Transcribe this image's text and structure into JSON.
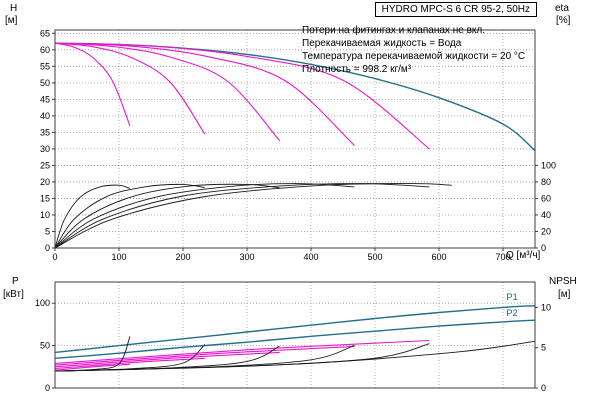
{
  "panel": {
    "title": "HYDRO MPC-S 6 CR 95-2, 50Hz",
    "notes": [
      "Потери на фитингах и клапанах не вкл.",
      "Перекачиваемая жидкость = Вода",
      "Температура перекачиваемой жидкости = 20 °C",
      "Плотность = 998.2 кг/м³"
    ]
  },
  "axes_labels": {
    "head": "H",
    "head_unit": "[м]",
    "eta": "eta",
    "eta_unit": "[%]",
    "power": "P",
    "power_unit": "[кВт]",
    "npsh": "NPSH",
    "npsh_unit": "[м]",
    "flow": "Q [м³/ч]"
  },
  "colors": {
    "blue": "#236d8e",
    "magenta": "#e619cb",
    "black": "#1a1a1a",
    "grid": "#9b9b9b",
    "frame": "#3c3c3c"
  },
  "chart_data": [
    {
      "type": "line",
      "name": "head-efficiency-chart",
      "title": "HYDRO MPC-S 6 CR 95-2, 50Hz",
      "xlabel": "Q [м³/ч]",
      "ylabel": "H [м]",
      "y2label": "eta [%]",
      "xlim": [
        0,
        750
      ],
      "ylim": [
        0,
        66
      ],
      "y2lim": [
        0,
        100
      ],
      "y2_maps_to_y": [
        0,
        25
      ],
      "xticks": [
        0,
        100,
        200,
        300,
        400,
        500,
        600,
        700
      ],
      "yticks": [
        0,
        5,
        10,
        15,
        20,
        25,
        30,
        35,
        40,
        45,
        50,
        55,
        60,
        65
      ],
      "y2ticks": [
        0,
        20,
        40,
        60,
        80,
        100
      ],
      "series": [
        {
          "name": "head-6-pumps",
          "color_key": "blue",
          "axis": "y",
          "width": 1.4,
          "x": [
            0,
            100,
            200,
            300,
            400,
            500,
            600,
            700,
            750
          ],
          "y": [
            62,
            61.6,
            60.5,
            58.6,
            55.6,
            51.3,
            45.5,
            37.5,
            29.5
          ]
        },
        {
          "name": "head-1-pump",
          "color_key": "magenta",
          "axis": "y",
          "width": 1.1,
          "x": [
            0,
            30,
            60,
            90,
            117
          ],
          "y": [
            62,
            60.8,
            57.5,
            50.5,
            37
          ]
        },
        {
          "name": "head-2-pumps",
          "color_key": "magenta",
          "axis": "y",
          "width": 1.1,
          "x": [
            0,
            60,
            120,
            180,
            234
          ],
          "y": [
            62,
            60.9,
            57.6,
            50.2,
            34.5
          ]
        },
        {
          "name": "head-3-pumps",
          "color_key": "magenta",
          "axis": "y",
          "width": 1.1,
          "x": [
            0,
            90,
            180,
            270,
            351
          ],
          "y": [
            62,
            61,
            57.8,
            50.4,
            32.5
          ]
        },
        {
          "name": "head-4-pumps",
          "color_key": "magenta",
          "axis": "y",
          "width": 1.1,
          "x": [
            0,
            120,
            240,
            360,
            468
          ],
          "y": [
            62,
            61.1,
            57.9,
            50.6,
            31
          ]
        },
        {
          "name": "head-5-pumps",
          "color_key": "magenta",
          "axis": "y",
          "width": 1.1,
          "x": [
            0,
            150,
            300,
            450,
            585
          ],
          "y": [
            62,
            61.2,
            58,
            50.8,
            30
          ]
        },
        {
          "name": "efficiency-1-pump",
          "color_key": "black",
          "axis": "y2",
          "width": 0.9,
          "x": [
            0,
            15,
            40,
            70,
            100,
            117
          ],
          "y": [
            0,
            35,
            62,
            74,
            76,
            72
          ]
        },
        {
          "name": "efficiency-2-pumps",
          "color_key": "black",
          "axis": "y2",
          "width": 0.9,
          "x": [
            0,
            30,
            80,
            140,
            200,
            234
          ],
          "y": [
            0,
            35,
            62,
            74,
            77,
            73
          ]
        },
        {
          "name": "efficiency-3-pumps",
          "color_key": "black",
          "axis": "y2",
          "width": 0.9,
          "x": [
            0,
            45,
            120,
            210,
            300,
            351
          ],
          "y": [
            0,
            35,
            62,
            75,
            77,
            73
          ]
        },
        {
          "name": "efficiency-4-pumps",
          "color_key": "black",
          "axis": "y2",
          "width": 0.9,
          "x": [
            0,
            60,
            160,
            280,
            380,
            468
          ],
          "y": [
            0,
            35,
            62,
            75,
            78,
            74
          ]
        },
        {
          "name": "efficiency-5-pumps",
          "color_key": "black",
          "axis": "y2",
          "width": 0.9,
          "x": [
            0,
            75,
            200,
            350,
            480,
            585
          ],
          "y": [
            0,
            35,
            63,
            75,
            78,
            74
          ]
        },
        {
          "name": "efficiency-6-pumps",
          "color_key": "black",
          "axis": "y2",
          "width": 0.9,
          "x": [
            0,
            90,
            240,
            420,
            560,
            620
          ],
          "y": [
            0,
            35,
            63,
            76,
            78,
            76
          ]
        }
      ],
      "annotations": []
    },
    {
      "type": "line",
      "name": "power-npsh-chart",
      "ylabel": "P [кВт]",
      "y2label": "NPSH [м]",
      "xlim": [
        0,
        750
      ],
      "ylim": [
        0,
        125
      ],
      "y2lim": [
        0,
        10
      ],
      "y2_maps_to_y": [
        0,
        95
      ],
      "xticks": [
        0,
        100,
        200,
        300,
        400,
        500,
        600,
        700
      ],
      "yticks": [
        0,
        50,
        100
      ],
      "y2ticks": [
        0,
        5,
        10
      ],
      "series": [
        {
          "name": "p1-total-power",
          "color_key": "blue",
          "axis": "y",
          "width": 1.4,
          "x": [
            0,
            100,
            200,
            300,
            400,
            500,
            600,
            700,
            750
          ],
          "y": [
            42,
            50,
            58,
            66,
            74,
            82,
            89,
            95,
            97
          ]
        },
        {
          "name": "p2-shaft-power",
          "color_key": "blue",
          "axis": "y",
          "width": 1.4,
          "x": [
            0,
            100,
            200,
            300,
            400,
            500,
            600,
            700,
            750
          ],
          "y": [
            35,
            41,
            48,
            54,
            61,
            67,
            73,
            78,
            80
          ]
        },
        {
          "name": "power-1-pump",
          "color_key": "magenta",
          "axis": "y",
          "width": 1.1,
          "x": [
            0,
            60,
            117
          ],
          "y": [
            21,
            25,
            28
          ]
        },
        {
          "name": "power-2-pumps",
          "color_key": "magenta",
          "axis": "y",
          "width": 1.1,
          "x": [
            0,
            120,
            234
          ],
          "y": [
            23,
            30,
            35
          ]
        },
        {
          "name": "power-3-pumps",
          "color_key": "magenta",
          "axis": "y",
          "width": 1.1,
          "x": [
            0,
            180,
            351
          ],
          "y": [
            25,
            35,
            42
          ]
        },
        {
          "name": "power-4-pumps",
          "color_key": "magenta",
          "axis": "y",
          "width": 1.1,
          "x": [
            0,
            240,
            468
          ],
          "y": [
            27,
            40,
            49
          ]
        },
        {
          "name": "power-5-pumps",
          "color_key": "magenta",
          "axis": "y",
          "width": 1.1,
          "x": [
            0,
            300,
            585
          ],
          "y": [
            29,
            45,
            56
          ]
        },
        {
          "name": "npsh-1-pump",
          "color_key": "black",
          "axis": "y2",
          "width": 0.9,
          "x": [
            0,
            60,
            100,
            117
          ],
          "y": [
            2.1,
            2.3,
            3,
            6.4
          ]
        },
        {
          "name": "npsh-2-pumps",
          "color_key": "black",
          "axis": "y2",
          "width": 0.9,
          "x": [
            0,
            120,
            200,
            234
          ],
          "y": [
            2.1,
            2.4,
            3.1,
            5.4
          ]
        },
        {
          "name": "npsh-3-pumps",
          "color_key": "black",
          "axis": "y2",
          "width": 0.9,
          "x": [
            0,
            180,
            300,
            351
          ],
          "y": [
            2.1,
            2.5,
            3.3,
            5.2
          ]
        },
        {
          "name": "npsh-4-pumps",
          "color_key": "black",
          "axis": "y2",
          "width": 0.9,
          "x": [
            0,
            240,
            400,
            468
          ],
          "y": [
            2.1,
            2.6,
            3.5,
            5.3
          ]
        },
        {
          "name": "npsh-5-pumps",
          "color_key": "black",
          "axis": "y2",
          "width": 0.9,
          "x": [
            0,
            300,
            500,
            585
          ],
          "y": [
            2.1,
            2.7,
            3.7,
            5.5
          ]
        },
        {
          "name": "npsh-6-pumps",
          "color_key": "black",
          "axis": "y2",
          "width": 0.9,
          "x": [
            0,
            360,
            620,
            750
          ],
          "y": [
            2.1,
            2.9,
            4.4,
            5.8
          ]
        }
      ],
      "annotations": [
        {
          "text": "P1",
          "x": 705,
          "y": 104,
          "color_key": "blue"
        },
        {
          "text": "P2",
          "x": 705,
          "y": 85,
          "color_key": "blue"
        }
      ]
    }
  ]
}
